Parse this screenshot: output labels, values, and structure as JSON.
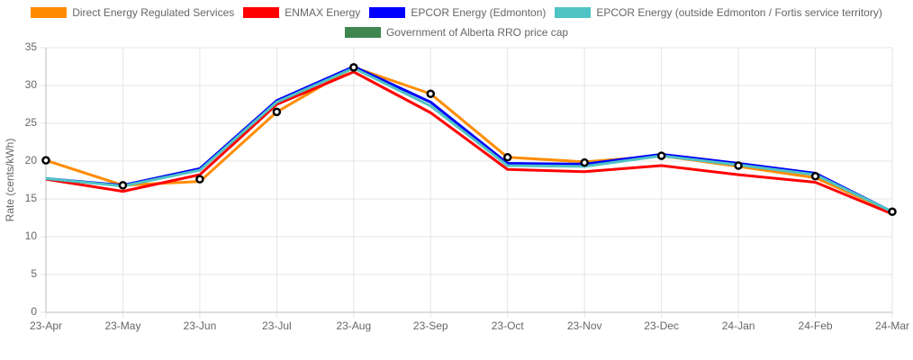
{
  "chart_data": {
    "type": "line",
    "y_label": "Rate (cents/kWh)",
    "categories": [
      "23-Apr",
      "23-May",
      "23-Jun",
      "23-Jul",
      "23-Aug",
      "23-Sep",
      "23-Oct",
      "23-Nov",
      "23-Dec",
      "24-Jan",
      "24-Feb",
      "24-Mar"
    ],
    "series": [
      {
        "name": "Direct Energy Regulated Services",
        "color": "#ff8c00",
        "values": [
          20.1,
          16.8,
          17.3,
          26.5,
          32.4,
          28.9,
          20.5,
          19.9,
          20.7,
          19.3,
          17.8,
          13.3
        ]
      },
      {
        "name": "ENMAX Energy",
        "color": "#ff0000",
        "values": [
          17.6,
          16.0,
          18.2,
          27.5,
          31.8,
          26.4,
          18.9,
          18.6,
          19.4,
          18.2,
          17.2,
          13.0
        ]
      },
      {
        "name": "EPCOR Energy (Edmonton)",
        "color": "#0000ff",
        "values": [
          17.7,
          16.8,
          19.0,
          28.0,
          32.5,
          27.8,
          19.7,
          19.6,
          20.9,
          19.7,
          18.4,
          13.3
        ]
      },
      {
        "name": "EPCOR Energy (outside Edmonton / Fortis service territory)",
        "color": "#4fc3c3",
        "values": [
          17.7,
          16.7,
          18.8,
          27.8,
          32.3,
          27.3,
          19.4,
          19.3,
          20.7,
          19.5,
          18.2,
          13.3
        ]
      },
      {
        "name": "Government of Alberta RRO price cap",
        "color": "#3f8650",
        "line": false,
        "values": [
          20.1,
          16.8,
          17.6,
          26.5,
          32.4,
          28.9,
          20.5,
          19.8,
          20.7,
          19.4,
          18.0,
          13.3
        ]
      }
    ],
    "ylim": [
      0,
      35
    ],
    "yticks": [
      0,
      5,
      10,
      15,
      20,
      25,
      30,
      35
    ],
    "grid": true
  }
}
